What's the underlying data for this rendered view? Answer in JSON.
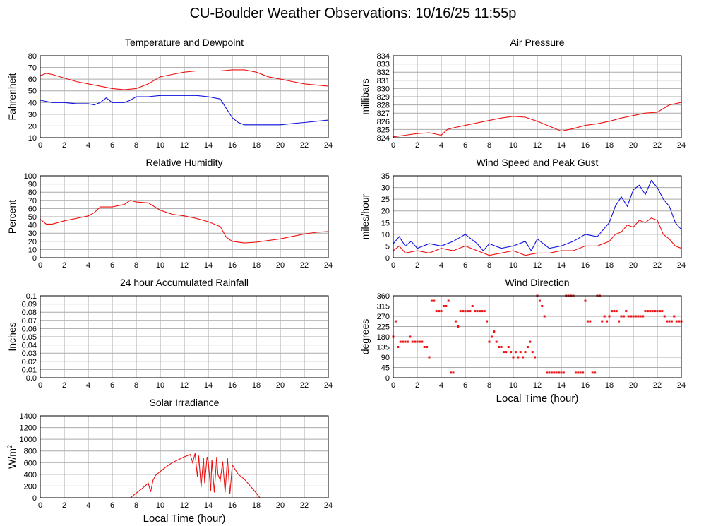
{
  "page": {
    "title": "CU-Boulder Weather Observations: 10/16/25 11:55p"
  },
  "colors": {
    "series_primary": "#ee1111",
    "series_secondary": "#1111dd",
    "grid": "#aaaaaa"
  },
  "chart_data": [
    {
      "id": "temp",
      "type": "line",
      "title": "Temperature and Dewpoint",
      "xlabel": "",
      "ylabel": "Fahrenheit",
      "xlim": [
        0,
        24
      ],
      "ylim": [
        10,
        80
      ],
      "xticks": [
        0,
        2,
        4,
        6,
        8,
        10,
        12,
        14,
        16,
        18,
        20,
        22,
        24
      ],
      "yticks": [
        10,
        20,
        30,
        40,
        50,
        60,
        70,
        80
      ],
      "grid": true,
      "legend": "none",
      "series": [
        {
          "color": "#ee1111",
          "x": [
            0,
            0.5,
            1,
            2,
            3,
            4,
            5,
            6,
            7,
            8,
            9,
            10,
            11,
            12,
            13,
            14,
            15,
            16,
            17,
            18,
            19,
            20,
            21,
            22,
            23,
            24
          ],
          "y": [
            63,
            65,
            64,
            61,
            58,
            56,
            54,
            52,
            51,
            52,
            56,
            62,
            64,
            66,
            67,
            67,
            67,
            68,
            68,
            66,
            62,
            60,
            58,
            56,
            55,
            54
          ]
        },
        {
          "color": "#1111dd",
          "x": [
            0,
            1,
            2,
            3,
            4,
            4.5,
            5,
            5.5,
            6,
            7,
            7.5,
            8,
            9,
            10,
            11,
            12,
            13,
            14,
            15,
            15.5,
            16,
            16.5,
            17,
            18,
            19,
            20,
            21,
            22,
            23,
            24
          ],
          "y": [
            42,
            40,
            40,
            39,
            39,
            38,
            40,
            44,
            40,
            40,
            42,
            45,
            45,
            46,
            46,
            46,
            46,
            45,
            43,
            35,
            27,
            23,
            21,
            21,
            21,
            21,
            22,
            23,
            24,
            25
          ]
        }
      ]
    },
    {
      "id": "pressure",
      "type": "line",
      "title": "Air Pressure",
      "xlabel": "",
      "ylabel": "millibars",
      "xlim": [
        0,
        24
      ],
      "ylim": [
        824,
        834
      ],
      "xticks": [
        0,
        2,
        4,
        6,
        8,
        10,
        12,
        14,
        16,
        18,
        20,
        22,
        24
      ],
      "yticks": [
        824,
        825,
        826,
        827,
        828,
        829,
        830,
        831,
        832,
        833,
        834
      ],
      "grid": true,
      "legend": "none",
      "series": [
        {
          "color": "#ee1111",
          "x": [
            0,
            1,
            2,
            3,
            4,
            4.5,
            5,
            6,
            7,
            8,
            9,
            10,
            11,
            12,
            13,
            14,
            15,
            16,
            17,
            18,
            19,
            20,
            21,
            22,
            23,
            24
          ],
          "y": [
            824.1,
            824.3,
            824.5,
            824.6,
            824.3,
            825,
            825.2,
            825.5,
            825.8,
            826.1,
            826.4,
            826.6,
            826.5,
            826,
            825.4,
            824.8,
            825.1,
            825.5,
            825.7,
            826,
            826.4,
            826.7,
            827,
            827.1,
            828,
            828.3
          ]
        }
      ]
    },
    {
      "id": "humidity",
      "type": "line",
      "title": "Relative Humidity",
      "xlabel": "",
      "ylabel": "Percent",
      "xlim": [
        0,
        24
      ],
      "ylim": [
        0,
        100
      ],
      "xticks": [
        0,
        2,
        4,
        6,
        8,
        10,
        12,
        14,
        16,
        18,
        20,
        22,
        24
      ],
      "yticks": [
        0,
        10,
        20,
        30,
        40,
        50,
        60,
        70,
        80,
        90,
        100
      ],
      "grid": true,
      "legend": "none",
      "series": [
        {
          "color": "#ee1111",
          "x": [
            0,
            0.5,
            1,
            2,
            3,
            4,
            4.5,
            5,
            6,
            7,
            7.5,
            8,
            9,
            10,
            11,
            12,
            13,
            14,
            15,
            15.5,
            16,
            17,
            18,
            19,
            20,
            21,
            22,
            23,
            24
          ],
          "y": [
            47,
            41,
            41,
            45,
            48,
            51,
            55,
            62,
            62,
            65,
            70,
            68,
            67,
            58,
            53,
            51,
            48,
            44,
            38,
            25,
            20,
            18,
            19,
            21,
            23,
            26,
            29,
            31,
            32
          ]
        }
      ]
    },
    {
      "id": "wind",
      "type": "line",
      "title": "Wind Speed and Peak Gust",
      "xlabel": "",
      "ylabel": "miles/hour",
      "xlim": [
        0,
        24
      ],
      "ylim": [
        0,
        35
      ],
      "xticks": [
        0,
        2,
        4,
        6,
        8,
        10,
        12,
        14,
        16,
        18,
        20,
        22,
        24
      ],
      "yticks": [
        0,
        5,
        10,
        15,
        20,
        25,
        30,
        35
      ],
      "grid": true,
      "legend": "none",
      "series": [
        {
          "color": "#1111dd",
          "x": [
            0,
            0.5,
            1,
            1.5,
            2,
            3,
            4,
            5,
            6,
            7,
            7.5,
            8,
            9,
            10,
            11,
            11.5,
            12,
            13,
            14,
            15,
            16,
            17,
            17.5,
            18,
            18.5,
            19,
            19.5,
            20,
            20.5,
            21,
            21.5,
            22,
            22.5,
            23,
            23.5,
            24
          ],
          "y": [
            6,
            9,
            5,
            7,
            4,
            6,
            5,
            7,
            10,
            6,
            3,
            6,
            4,
            5,
            7,
            3,
            8,
            4,
            5,
            7,
            10,
            9,
            12,
            15,
            22,
            26,
            22,
            29,
            31,
            27,
            33,
            30,
            25,
            22,
            15,
            12
          ]
        },
        {
          "color": "#ee1111",
          "x": [
            0,
            0.5,
            1,
            2,
            3,
            4,
            5,
            6,
            7,
            8,
            9,
            10,
            11,
            12,
            13,
            14,
            15,
            16,
            17,
            18,
            18.5,
            19,
            19.5,
            20,
            20.5,
            21,
            21.5,
            22,
            22.5,
            23,
            23.5,
            24
          ],
          "y": [
            3,
            5,
            2,
            3,
            2,
            4,
            3,
            5,
            3,
            1,
            2,
            3,
            1,
            2,
            2,
            3,
            3,
            5,
            5,
            7,
            10,
            11,
            14,
            13,
            16,
            15,
            17,
            16,
            10,
            8,
            5,
            4
          ]
        }
      ]
    },
    {
      "id": "rain",
      "type": "line",
      "title": "24 hour Accumulated Rainfall",
      "xlabel": "",
      "ylabel": "Inches",
      "xlim": [
        0,
        24
      ],
      "ylim": [
        0,
        0.1
      ],
      "xticks": [
        0,
        2,
        4,
        6,
        8,
        10,
        12,
        14,
        16,
        18,
        20,
        22,
        24
      ],
      "yticks": [
        "0.0",
        "0.01",
        "0.02",
        "0.03",
        "0.04",
        "0.05",
        "0.06",
        "0.07",
        "0.08",
        "0.09",
        "0.1"
      ],
      "grid": true,
      "legend": "none",
      "series": [
        {
          "color": "#ee1111",
          "x": [
            0,
            24
          ],
          "y": [
            0,
            0
          ]
        }
      ]
    },
    {
      "id": "winddir",
      "type": "scatter",
      "title": "Wind Direction",
      "xlabel": "Local Time (hour)",
      "ylabel": "degrees",
      "xlim": [
        0,
        24
      ],
      "ylim": [
        0,
        360
      ],
      "xticks": [
        0,
        2,
        4,
        6,
        8,
        10,
        12,
        14,
        16,
        18,
        20,
        22,
        24
      ],
      "yticks": [
        0,
        45,
        90,
        135,
        180,
        225,
        270,
        315,
        360
      ],
      "grid": true,
      "legend": "none",
      "series": [
        {
          "color": "#ee1111",
          "x": [
            0,
            0.2,
            0.4,
            0.6,
            0.8,
            1,
            1.2,
            1.4,
            1.6,
            1.8,
            2,
            2.2,
            2.4,
            2.6,
            2.8,
            3,
            3.2,
            3.4,
            3.6,
            3.8,
            4,
            4.2,
            4.4,
            4.6,
            4.8,
            5,
            5.2,
            5.4,
            5.6,
            5.8,
            6,
            6.2,
            6.4,
            6.6,
            6.8,
            7,
            7.2,
            7.4,
            7.6,
            7.8,
            8,
            8.2,
            8.4,
            8.6,
            8.8,
            9,
            9.2,
            9.4,
            9.6,
            9.8,
            10,
            10.2,
            10.4,
            10.6,
            10.8,
            11,
            11.2,
            11.4,
            11.6,
            11.8,
            12,
            12.2,
            12.4,
            12.6,
            12.8,
            13,
            13.2,
            13.4,
            13.6,
            13.8,
            14,
            14.2,
            14.4,
            14.6,
            14.8,
            15,
            15.2,
            15.4,
            15.6,
            15.8,
            16,
            16.2,
            16.4,
            16.6,
            16.8,
            17,
            17.2,
            17.4,
            17.6,
            17.8,
            18,
            18.2,
            18.4,
            18.6,
            18.8,
            19,
            19.2,
            19.4,
            19.6,
            19.8,
            20,
            20.2,
            20.4,
            20.6,
            20.8,
            21,
            21.2,
            21.4,
            21.6,
            21.8,
            22,
            22.2,
            22.4,
            22.6,
            22.8,
            23,
            23.2,
            23.4,
            23.6,
            23.8,
            24
          ],
          "y": [
            180,
            248,
            135,
            158,
            158,
            158,
            158,
            180,
            158,
            158,
            158,
            158,
            158,
            135,
            135,
            90,
            338,
            338,
            293,
            293,
            293,
            315,
            315,
            338,
            22,
            22,
            248,
            225,
            293,
            293,
            293,
            293,
            293,
            315,
            293,
            293,
            293,
            293,
            293,
            248,
            158,
            180,
            203,
            158,
            135,
            135,
            113,
            113,
            135,
            113,
            90,
            113,
            90,
            113,
            90,
            113,
            135,
            158,
            113,
            90,
            360,
            338,
            315,
            270,
            22,
            22,
            22,
            22,
            22,
            22,
            22,
            22,
            360,
            360,
            360,
            360,
            22,
            22,
            22,
            22,
            338,
            248,
            248,
            22,
            22,
            360,
            360,
            248,
            270,
            248,
            270,
            293,
            293,
            293,
            248,
            270,
            270,
            293,
            270,
            270,
            270,
            270,
            270,
            270,
            270,
            293,
            293,
            293,
            293,
            293,
            293,
            293,
            293,
            270,
            248,
            248,
            248,
            270,
            248,
            248,
            248
          ]
        }
      ]
    },
    {
      "id": "solar",
      "type": "line",
      "title": "Solar Irradiance",
      "xlabel": "Local Time (hour)",
      "ylabel": "W/m",
      "ylabel_sup": "2",
      "xlim": [
        0,
        24
      ],
      "ylim": [
        0,
        1400
      ],
      "xticks": [
        0,
        2,
        4,
        6,
        8,
        10,
        12,
        14,
        16,
        18,
        20,
        22,
        24
      ],
      "yticks": [
        0,
        200,
        400,
        600,
        800,
        1000,
        1200,
        1400
      ],
      "grid": true,
      "legend": "none",
      "series": [
        {
          "color": "#ee1111",
          "x": [
            0,
            7.5,
            8,
            8.5,
            9,
            9.2,
            9.4,
            9.6,
            10,
            10.5,
            11,
            11.5,
            12,
            12.5,
            12.7,
            12.9,
            13.1,
            13.2,
            13.4,
            13.6,
            13.7,
            13.9,
            14,
            14.2,
            14.3,
            14.5,
            14.7,
            14.8,
            15,
            15.2,
            15.4,
            15.6,
            15.8,
            16,
            16.5,
            17,
            17.5,
            18,
            18.3,
            24
          ],
          "y": [
            0,
            0,
            80,
            160,
            250,
            100,
            300,
            380,
            450,
            530,
            600,
            650,
            700,
            740,
            600,
            760,
            350,
            720,
            180,
            680,
            250,
            700,
            620,
            120,
            650,
            90,
            700,
            400,
            300,
            620,
            90,
            680,
            60,
            560,
            400,
            320,
            200,
            80,
            0,
            0
          ]
        }
      ]
    }
  ]
}
